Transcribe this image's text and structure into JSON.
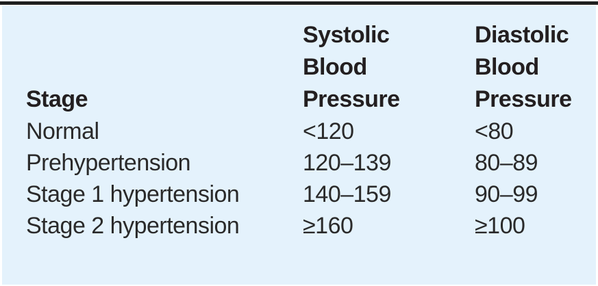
{
  "table": {
    "columns": [
      {
        "label": "Stage"
      },
      {
        "label": "Systolic Blood Pressure"
      },
      {
        "label": "Diastolic Blood Pressure"
      }
    ],
    "rows": [
      {
        "stage": "Normal",
        "systolic": "<120",
        "diastolic": "<80"
      },
      {
        "stage": "Prehypertension",
        "systolic": "120–139",
        "diastolic": "80–89"
      },
      {
        "stage": "Stage 1 hypertension",
        "systolic": "140–159",
        "diastolic": "90–99"
      },
      {
        "stage": "Stage 2 hypertension",
        "systolic": "≥160",
        "diastolic": "≥100"
      }
    ]
  },
  "colors": {
    "panel_bg": "#e4f2fc",
    "top_rule": "#1f1f1f",
    "text": "#2a2a2a",
    "header_text": "#231f20"
  },
  "chart_data": {
    "type": "table",
    "title": "",
    "columns": [
      "Stage",
      "Systolic Blood Pressure",
      "Diastolic Blood Pressure"
    ],
    "rows": [
      [
        "Normal",
        "<120",
        "<80"
      ],
      [
        "Prehypertension",
        "120–139",
        "80–89"
      ],
      [
        "Stage 1 hypertension",
        "140–159",
        "90–99"
      ],
      [
        "Stage 2 hypertension",
        "≥160",
        "≥100"
      ]
    ]
  }
}
